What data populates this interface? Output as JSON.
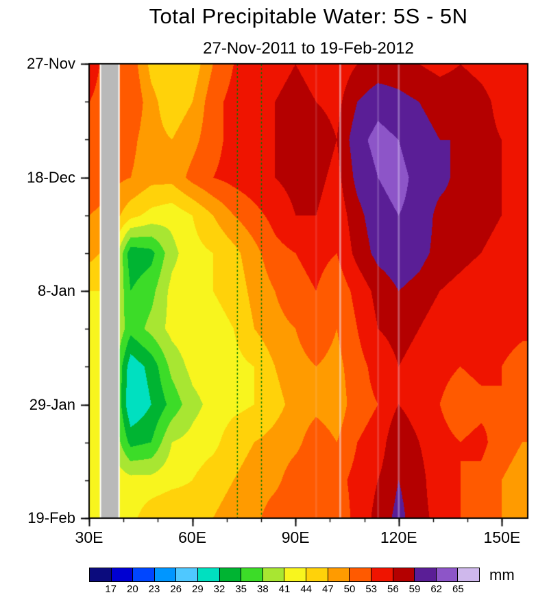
{
  "chart_data": {
    "type": "heatmap",
    "title": "Total Precipitable Water: 5S - 5N",
    "subtitle": "27-Nov-2011 to 19-Feb-2012",
    "xlabel": "",
    "ylabel": "",
    "units": "mm",
    "x_range": [
      30,
      157.5
    ],
    "x_ticks": [
      {
        "value": 30,
        "label": "30E"
      },
      {
        "value": 60,
        "label": "60E"
      },
      {
        "value": 90,
        "label": "90E"
      },
      {
        "value": 120,
        "label": "120E"
      },
      {
        "value": 150,
        "label": "150E"
      }
    ],
    "x_minor_step": 10,
    "y_ticks": [
      {
        "day": 0,
        "label": "27-Nov"
      },
      {
        "day": 21,
        "label": "18-Dec"
      },
      {
        "day": 42,
        "label": "8-Jan"
      },
      {
        "day": 63,
        "label": "29-Jan"
      },
      {
        "day": 84,
        "label": "19-Feb"
      }
    ],
    "y_minor_step": 7,
    "levels": [
      17,
      20,
      23,
      26,
      29,
      32,
      35,
      38,
      41,
      44,
      47,
      50,
      53,
      56,
      59,
      62,
      65
    ],
    "colorbar_labels": [
      "17",
      "20",
      "23",
      "26",
      "29",
      "32",
      "35",
      "38",
      "41",
      "44",
      "47",
      "50",
      "53",
      "56",
      "59",
      "62",
      "65"
    ],
    "palette": [
      "#0b0b7d",
      "#0000d2",
      "#0046ff",
      "#0096ff",
      "#4fc8ff",
      "#00e0c0",
      "#00b432",
      "#3cdc28",
      "#a8e632",
      "#f8f51e",
      "#ffd20a",
      "#ff9b00",
      "#ff5a00",
      "#ef1400",
      "#b40000",
      "#5a1e96",
      "#8d55c8",
      "#cfb8ec"
    ],
    "land_mask_lon": [
      33.5,
      38.5
    ],
    "mask_color": "#b9b9b9",
    "dashed_lines_lon": [
      73,
      80
    ],
    "dashed_line_color": "#007a00",
    "streaks": [
      {
        "lon": 103,
        "alpha": 0.5
      },
      {
        "lon": 120,
        "alpha": 0.35
      },
      {
        "lon": 114,
        "alpha": 0.18
      },
      {
        "lon": 96,
        "alpha": 0.12
      }
    ],
    "grid_lon": [
      30,
      36,
      42,
      48,
      54,
      60,
      66,
      72,
      78,
      84,
      90,
      96,
      102,
      108,
      114,
      120,
      126,
      132,
      138,
      144,
      150,
      156
    ],
    "grid_days": [
      0,
      7,
      14,
      21,
      28,
      35,
      42,
      49,
      56,
      63,
      70,
      77,
      84
    ],
    "values": [
      [
        54,
        52,
        52,
        46,
        44,
        45,
        50,
        53,
        54,
        55,
        56,
        55,
        54,
        56,
        57,
        57,
        56,
        55,
        56,
        55,
        54,
        53
      ],
      [
        53,
        52,
        53,
        48,
        45,
        47,
        52,
        54,
        55,
        56,
        57,
        56,
        55,
        59,
        61,
        60,
        59,
        58,
        58,
        57,
        55,
        54
      ],
      [
        53,
        52,
        51,
        48,
        47,
        49,
        52,
        54,
        56,
        56,
        57,
        58,
        56,
        61,
        63,
        62,
        60,
        59,
        59,
        57,
        56,
        54
      ],
      [
        52,
        51,
        50,
        48,
        48,
        51,
        53,
        54,
        55,
        56,
        57,
        57,
        55,
        60,
        62,
        63,
        61,
        60,
        58,
        58,
        56,
        55
      ],
      [
        50,
        49,
        45,
        43,
        42,
        44,
        47,
        50,
        52,
        54,
        56,
        56,
        54,
        58,
        61,
        62,
        61,
        58,
        58,
        57,
        56,
        55
      ],
      [
        48,
        46,
        33,
        34,
        40,
        43,
        44,
        46,
        49,
        52,
        53,
        54,
        53,
        57,
        60,
        61,
        60,
        58,
        57,
        56,
        55,
        54
      ],
      [
        44,
        44,
        35,
        37,
        42,
        43,
        44,
        45,
        48,
        50,
        52,
        53,
        51,
        54,
        57,
        59,
        58,
        56,
        55,
        54,
        53,
        53
      ],
      [
        43,
        43,
        36,
        39,
        42,
        43,
        43,
        44,
        47,
        49,
        50,
        52,
        50,
        53,
        56,
        57,
        56,
        54,
        53,
        54,
        55,
        54
      ],
      [
        43,
        42,
        30,
        33,
        39,
        42,
        43,
        43,
        44,
        47,
        49,
        50,
        49,
        52,
        54,
        56,
        55,
        54,
        53,
        54,
        53,
        51
      ],
      [
        42,
        42,
        29,
        32,
        36,
        40,
        42,
        43,
        44,
        46,
        48,
        49,
        48,
        52,
        53,
        56,
        54,
        53,
        51,
        52,
        53,
        52
      ],
      [
        43,
        42,
        34,
        35,
        41,
        42,
        43,
        46,
        47,
        48,
        49,
        52,
        50,
        53,
        54,
        59,
        56,
        54,
        53,
        54,
        51,
        50
      ],
      [
        44,
        43,
        42,
        42,
        43,
        44,
        46,
        47,
        48,
        49,
        52,
        53,
        52,
        54,
        56,
        59,
        57,
        54,
        53,
        52,
        50,
        49
      ],
      [
        43,
        43,
        43,
        46,
        47,
        46,
        47,
        48,
        49,
        52,
        53,
        52,
        51,
        54,
        57,
        60,
        57,
        55,
        53,
        52,
        50,
        49
      ]
    ]
  }
}
